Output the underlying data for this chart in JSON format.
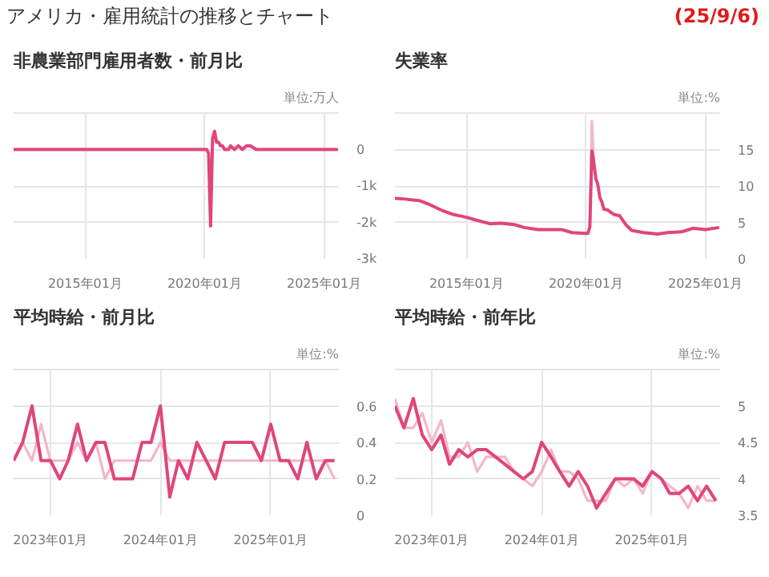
{
  "chart_data": [
    {
      "type": "line",
      "title": "非農業部門雇用者数・前月比",
      "ylabel": "単位:万人",
      "annotations": [
        "アメリカ・雇用統計の推移とチャート",
        "(25/9/6)"
      ],
      "grid": true,
      "marker": "none",
      "line_style": "solid",
      "xlim": [
        "2012-01-01",
        "2025-08-15"
      ],
      "xticks": [
        {
          "value": "2015-01-01",
          "label": "2015年01月"
        },
        {
          "value": "2020-01-01",
          "label": "2020年01月"
        },
        {
          "value": "2025-01-01",
          "label": "2025年01月"
        }
      ],
      "ylim": [
        -3000,
        1000
      ],
      "yticks": [
        {
          "value": 0,
          "label": "0"
        },
        {
          "value": -1000,
          "label": "-1k"
        },
        {
          "value": -2000,
          "label": "-2k"
        },
        {
          "value": -3000,
          "label": "-3k"
        }
      ],
      "x": [
        "2012-01",
        "2012-05",
        "2012-09",
        "2013-01",
        "2013-05",
        "2013-09",
        "2014-01",
        "2014-05",
        "2014-09",
        "2015-01",
        "2015-05",
        "2015-09",
        "2016-01",
        "2016-05",
        "2016-09",
        "2017-01",
        "2017-05",
        "2017-09",
        "2018-01",
        "2018-05",
        "2018-09",
        "2019-01",
        "2019-05",
        "2019-09",
        "2020-01",
        "2020-02",
        "2020-03",
        "2020-04",
        "2020-05",
        "2020-06",
        "2020-07",
        "2020-08",
        "2020-09",
        "2020-10",
        "2020-11",
        "2020-12",
        "2021-01",
        "2021-02",
        "2021-04",
        "2021-06",
        "2021-08",
        "2021-10",
        "2021-12",
        "2022-03",
        "2022-06",
        "2022-09",
        "2022-12",
        "2023-03",
        "2023-06",
        "2023-09",
        "2023-12",
        "2024-03",
        "2024-06",
        "2024-09",
        "2024-12",
        "2025-03",
        "2025-06",
        "2025-08"
      ],
      "series": [
        {
          "color": "#e0457b",
          "values": [
            0,
            0,
            0,
            0,
            0,
            0,
            0,
            0,
            0,
            0,
            0,
            0,
            0,
            0,
            0,
            0,
            0,
            0,
            0,
            0,
            0,
            0,
            0,
            0,
            0,
            0,
            -100,
            -2100,
            300,
            500,
            200,
            200,
            100,
            100,
            0,
            0,
            0,
            100,
            0,
            100,
            0,
            100,
            100,
            0,
            0,
            0,
            0,
            0,
            0,
            0,
            0,
            0,
            0,
            0,
            0,
            0,
            0,
            0
          ]
        }
      ]
    },
    {
      "type": "line",
      "title": "失業率",
      "ylabel": "単位:%",
      "grid": true,
      "marker": "none",
      "line_style": "solid",
      "xlim": [
        "2012-01-01",
        "2025-08-15"
      ],
      "xticks": [
        {
          "value": "2015-01-01",
          "label": "2015年01月"
        },
        {
          "value": "2020-01-01",
          "label": "2020年01月"
        },
        {
          "value": "2025-01-01",
          "label": "2025年01月"
        }
      ],
      "ylim": [
        0,
        20
      ],
      "yticks": [
        0,
        5,
        10,
        15
      ],
      "x": [
        "2012-01",
        "2012-06",
        "2013-01",
        "2013-06",
        "2014-01",
        "2014-06",
        "2015-01",
        "2015-06",
        "2016-01",
        "2016-06",
        "2017-01",
        "2017-06",
        "2018-01",
        "2018-06",
        "2019-01",
        "2019-06",
        "2020-01",
        "2020-02",
        "2020-03",
        "2020-04",
        "2020-05",
        "2020-06",
        "2020-07",
        "2020-08",
        "2020-09",
        "2020-10",
        "2020-12",
        "2021-03",
        "2021-06",
        "2021-09",
        "2021-12",
        "2022-06",
        "2023-01",
        "2023-06",
        "2024-01",
        "2024-07",
        "2025-01",
        "2025-08"
      ],
      "series": [
        {
          "color": "#f4b6c9",
          "values": [
            null,
            null,
            null,
            null,
            null,
            null,
            null,
            null,
            null,
            null,
            null,
            null,
            null,
            null,
            null,
            null,
            null,
            null,
            4.4,
            18.9,
            13.3,
            null,
            null,
            null,
            null,
            null,
            null,
            null,
            null,
            null,
            null,
            null,
            null,
            null,
            null,
            null,
            null,
            null
          ]
        },
        {
          "color": "#e0457b",
          "values": [
            8.3,
            8.2,
            8.0,
            7.5,
            6.6,
            6.1,
            5.7,
            5.3,
            4.8,
            4.9,
            4.7,
            4.3,
            4.0,
            4.0,
            4.0,
            3.6,
            3.5,
            3.5,
            4.4,
            14.8,
            13.2,
            11.0,
            10.2,
            8.4,
            7.8,
            6.8,
            6.7,
            6.1,
            5.9,
            4.7,
            3.9,
            3.6,
            3.4,
            3.6,
            3.7,
            4.2,
            4.0,
            4.3
          ]
        }
      ]
    },
    {
      "type": "line",
      "title": "平均時給・前月比",
      "ylabel": "単位:%",
      "grid": true,
      "marker": "none",
      "line_style": "solid",
      "xlim": [
        "2022-09-01",
        "2025-08-15"
      ],
      "xticks": [
        {
          "value": "2023-01-01",
          "label": "2023年01月"
        },
        {
          "value": "2024-01-01",
          "label": "2024年01月"
        },
        {
          "value": "2025-01-01",
          "label": "2025年01月"
        }
      ],
      "ylim": [
        0,
        0.8
      ],
      "yticks": [
        0,
        0.2,
        0.4,
        0.6
      ],
      "x": [
        "2022-09",
        "2022-10",
        "2022-11",
        "2022-12",
        "2023-01",
        "2023-02",
        "2023-03",
        "2023-04",
        "2023-05",
        "2023-06",
        "2023-07",
        "2023-08",
        "2023-09",
        "2023-10",
        "2023-11",
        "2023-12",
        "2024-01",
        "2024-02",
        "2024-03",
        "2024-04",
        "2024-05",
        "2024-06",
        "2024-07",
        "2024-08",
        "2024-09",
        "2024-10",
        "2024-11",
        "2024-12",
        "2025-01",
        "2025-02",
        "2025-03",
        "2025-04",
        "2025-05",
        "2025-06",
        "2025-07",
        "2025-08"
      ],
      "series": [
        {
          "color": "#f4b6c9",
          "values": [
            0.3,
            0.4,
            0.3,
            0.5,
            0.3,
            0.3,
            0.3,
            0.4,
            0.3,
            0.4,
            0.2,
            0.3,
            0.3,
            0.3,
            0.3,
            0.3,
            0.4,
            0.3,
            0.3,
            0.3,
            0.3,
            0.3,
            0.3,
            0.3,
            0.3,
            0.3,
            0.3,
            0.3,
            0.3,
            0.3,
            0.3,
            0.3,
            0.3,
            0.3,
            0.3,
            0.2
          ]
        },
        {
          "color": "#e0457b",
          "values": [
            0.3,
            0.4,
            0.6,
            0.3,
            0.3,
            0.2,
            0.3,
            0.5,
            0.3,
            0.4,
            0.4,
            0.2,
            0.2,
            0.2,
            0.4,
            0.4,
            0.6,
            0.1,
            0.3,
            0.2,
            0.4,
            0.3,
            0.2,
            0.4,
            0.4,
            0.4,
            0.4,
            0.3,
            0.5,
            0.3,
            0.3,
            0.2,
            0.4,
            0.2,
            0.3,
            0.3
          ]
        }
      ]
    },
    {
      "type": "line",
      "title": "平均時給・前年比",
      "ylabel": "単位:%",
      "grid": true,
      "marker": "none",
      "line_style": "solid",
      "xlim": [
        "2022-09-01",
        "2025-08-15"
      ],
      "xticks": [
        {
          "value": "2023-01-01",
          "label": "2023年01月"
        },
        {
          "value": "2024-01-01",
          "label": "2024年01月"
        },
        {
          "value": "2025-01-01",
          "label": "2025年01月"
        }
      ],
      "ylim": [
        3.5,
        5.5
      ],
      "yticks": [
        3.5,
        4,
        4.5,
        5
      ],
      "x": [
        "2022-09",
        "2022-10",
        "2022-11",
        "2022-12",
        "2023-01",
        "2023-02",
        "2023-03",
        "2023-04",
        "2023-05",
        "2023-06",
        "2023-07",
        "2023-08",
        "2023-09",
        "2023-10",
        "2023-11",
        "2023-12",
        "2024-01",
        "2024-02",
        "2024-03",
        "2024-04",
        "2024-05",
        "2024-06",
        "2024-07",
        "2024-08",
        "2024-09",
        "2024-10",
        "2024-11",
        "2024-12",
        "2025-01",
        "2025-02",
        "2025-03",
        "2025-04",
        "2025-05",
        "2025-06",
        "2025-07",
        "2025-08"
      ],
      "series": [
        {
          "color": "#f4b6c9",
          "values": [
            5.1,
            4.7,
            4.7,
            4.9,
            4.5,
            4.8,
            4.3,
            4.3,
            4.5,
            4.1,
            4.3,
            4.3,
            4.3,
            4.1,
            4.0,
            3.9,
            4.1,
            4.4,
            4.1,
            4.1,
            4.0,
            3.7,
            3.7,
            3.7,
            4.0,
            3.9,
            4.0,
            3.8,
            4.1,
            4.0,
            3.9,
            3.8,
            3.6,
            3.9,
            3.7,
            3.7
          ]
        },
        {
          "color": "#e0457b",
          "values": [
            5.0,
            4.7,
            5.1,
            4.6,
            4.4,
            4.6,
            4.2,
            4.4,
            4.3,
            4.4,
            4.4,
            4.3,
            4.2,
            4.1,
            4.0,
            4.1,
            4.5,
            4.3,
            4.1,
            3.9,
            4.1,
            3.9,
            3.6,
            3.8,
            4.0,
            4.0,
            4.0,
            3.9,
            4.1,
            4.0,
            3.8,
            3.8,
            3.9,
            3.7,
            3.9,
            3.7
          ]
        }
      ]
    }
  ]
}
